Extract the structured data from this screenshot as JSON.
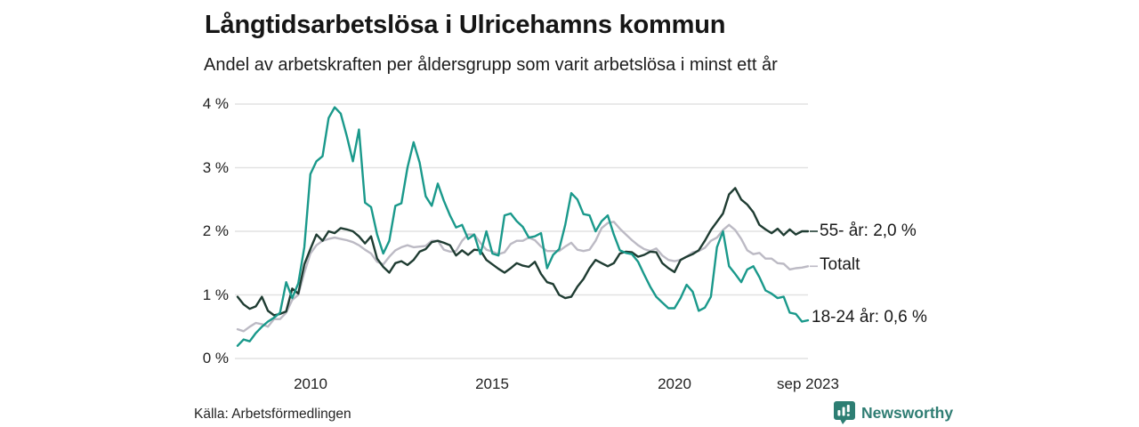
{
  "header": {
    "title": "Långtidsarbetslösa i Ulricehamns kommun",
    "subtitle": "Andel av arbetskraften per åldersgrupp som varit arbetslösa i minst ett år"
  },
  "footer": {
    "source": "Källa: Arbetsförmedlingen",
    "brand": "Newsworthy"
  },
  "colors": {
    "grid": "#e2e2e2",
    "title_text": "#161616",
    "axis_text": "#222222",
    "brand_teal": "#2d7e73",
    "series_55": "#1f3c32",
    "series_totalt": "#bcbac4",
    "series_1824": "#1a998b"
  },
  "chart_data": {
    "type": "line",
    "title": "Långtidsarbetslösa i Ulricehamns kommun",
    "subtitle": "Andel av arbetskraften per åldersgrupp som varit arbetslösa i minst ett år",
    "unit": "%",
    "x_start": 2008.0,
    "x_step_years": 0.166667,
    "x_end": 2023.667,
    "grid": true,
    "legend_position": "right-end-labels",
    "y_axis": {
      "range": [
        0,
        4
      ],
      "ticks": [
        {
          "value": 0,
          "label": "0 %"
        },
        {
          "value": 1,
          "label": "1 %"
        },
        {
          "value": 2,
          "label": "2 %"
        },
        {
          "value": 3,
          "label": "3 %"
        },
        {
          "value": 4,
          "label": "4 %"
        }
      ]
    },
    "x_axis": {
      "ticks": [
        {
          "x": 2010,
          "label": "2010"
        },
        {
          "x": 2015,
          "label": "2015"
        },
        {
          "x": 2020,
          "label": "2020"
        },
        {
          "x": 2023.667,
          "label": "sep 2023"
        }
      ]
    },
    "series": [
      {
        "id": "55",
        "name": "55- år",
        "end_label": "55- år: 2,0 %",
        "last_value": 2.0,
        "color": "#1f3c32",
        "end_dash": true,
        "values": [
          0.97,
          0.85,
          0.78,
          0.82,
          0.97,
          0.75,
          0.68,
          0.7,
          0.74,
          1.1,
          1.02,
          1.48,
          1.72,
          1.95,
          1.85,
          2.0,
          1.97,
          2.05,
          2.03,
          2.0,
          1.92,
          1.81,
          1.92,
          1.57,
          1.44,
          1.35,
          1.5,
          1.53,
          1.47,
          1.55,
          1.68,
          1.72,
          1.83,
          1.85,
          1.82,
          1.78,
          1.62,
          1.7,
          1.63,
          1.71,
          1.7,
          1.55,
          1.48,
          1.41,
          1.35,
          1.42,
          1.5,
          1.46,
          1.44,
          1.52,
          1.33,
          1.2,
          1.17,
          1.0,
          0.95,
          0.97,
          1.13,
          1.25,
          1.42,
          1.55,
          1.5,
          1.45,
          1.5,
          1.65,
          1.68,
          1.67,
          1.6,
          1.63,
          1.68,
          1.67,
          1.5,
          1.42,
          1.36,
          1.55,
          1.6,
          1.64,
          1.7,
          1.85,
          2.02,
          2.15,
          2.28,
          2.58,
          2.68,
          2.5,
          2.42,
          2.3,
          2.1,
          2.03,
          1.97,
          2.04,
          1.94,
          2.03,
          1.95,
          2.0,
          2.0
        ]
      },
      {
        "id": "totalt",
        "name": "Totalt",
        "end_label": "Totalt",
        "last_value": 1.45,
        "color": "#bcbac4",
        "end_dash": true,
        "values": [
          0.46,
          0.43,
          0.5,
          0.56,
          0.54,
          0.5,
          0.62,
          0.62,
          0.72,
          0.92,
          1.0,
          1.35,
          1.65,
          1.78,
          1.85,
          1.88,
          1.9,
          1.88,
          1.86,
          1.83,
          1.78,
          1.71,
          1.65,
          1.52,
          1.48,
          1.6,
          1.7,
          1.75,
          1.78,
          1.75,
          1.76,
          1.77,
          1.85,
          1.85,
          1.71,
          1.68,
          1.69,
          1.85,
          1.95,
          1.95,
          1.82,
          1.71,
          1.68,
          1.64,
          1.67,
          1.8,
          1.85,
          1.85,
          1.9,
          1.86,
          1.76,
          1.69,
          1.69,
          1.69,
          1.76,
          1.82,
          1.71,
          1.69,
          1.71,
          1.85,
          2.05,
          2.13,
          2.15,
          2.04,
          1.95,
          1.86,
          1.78,
          1.72,
          1.69,
          1.73,
          1.62,
          1.55,
          1.53,
          1.55,
          1.6,
          1.67,
          1.69,
          1.74,
          1.85,
          1.9,
          2.02,
          2.1,
          2.02,
          1.88,
          1.7,
          1.64,
          1.66,
          1.57,
          1.57,
          1.5,
          1.49,
          1.4,
          1.42,
          1.43,
          1.45
        ]
      },
      {
        "id": "1824",
        "name": "18-24 år",
        "end_label": "18-24 år: 0,6 %",
        "last_value": 0.6,
        "color": "#1a998b",
        "end_dash": false,
        "values": [
          0.2,
          0.3,
          0.27,
          0.4,
          0.5,
          0.58,
          0.64,
          0.72,
          1.2,
          0.95,
          1.18,
          1.75,
          2.9,
          3.1,
          3.18,
          3.78,
          3.95,
          3.85,
          3.5,
          3.1,
          3.6,
          2.45,
          2.38,
          1.95,
          1.65,
          1.85,
          2.4,
          2.44,
          3.0,
          3.4,
          3.08,
          2.55,
          2.4,
          2.75,
          2.48,
          2.25,
          2.06,
          2.1,
          1.88,
          1.95,
          1.64,
          2.0,
          1.65,
          1.62,
          2.25,
          2.28,
          2.16,
          2.07,
          1.9,
          1.92,
          1.97,
          1.42,
          1.63,
          1.72,
          2.1,
          2.6,
          2.5,
          2.27,
          2.25,
          2.0,
          2.16,
          2.25,
          1.95,
          1.7,
          1.66,
          1.64,
          1.52,
          1.32,
          1.13,
          0.97,
          0.88,
          0.79,
          0.79,
          0.95,
          1.16,
          1.05,
          0.75,
          0.8,
          0.97,
          1.75,
          2.0,
          1.45,
          1.33,
          1.2,
          1.4,
          1.45,
          1.28,
          1.07,
          1.02,
          0.95,
          0.97,
          0.72,
          0.7,
          0.58,
          0.6
        ]
      }
    ]
  }
}
